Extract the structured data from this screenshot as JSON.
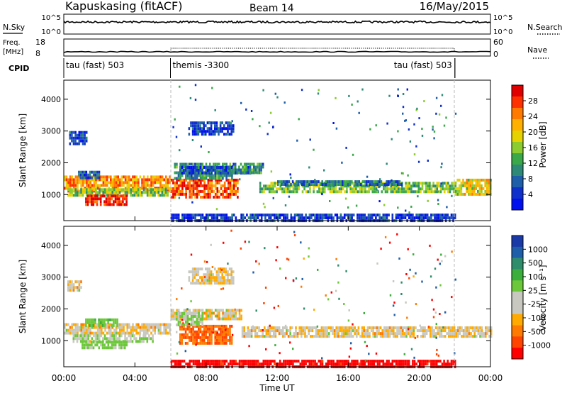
{
  "header": {
    "station": "Kapuskasing (fitACF)",
    "beam": "Beam 14",
    "date": "16/May/2015"
  },
  "top_panels": {
    "nsky_label": "N.Sky",
    "nsky_ticks": [
      "10^5",
      "10^0"
    ],
    "nsky_right_ticks": [
      "10^5",
      "10^0"
    ],
    "nsearch_label": "N.Search",
    "freq_label": "Freq.",
    "freq_unit": "[MHz]",
    "freq_ticks": [
      "18",
      "8"
    ],
    "nave_ticks": [
      "60",
      "0"
    ],
    "nave_label": "Nave",
    "cpid_label": "CPID",
    "cpid_segments": [
      {
        "label": "tau (fast) 503",
        "start_h": 0,
        "end_h": 6
      },
      {
        "label": "themis -3300",
        "start_h": 6,
        "end_h": 22
      },
      {
        "label": "tau (fast) 503",
        "start_h": 22,
        "end_h": 24
      }
    ]
  },
  "colorbars": {
    "power": {
      "title": "Power [dB]",
      "labels": [
        "28",
        "24",
        "20",
        "16",
        "12",
        "8",
        "4"
      ],
      "colors": [
        "#e00000",
        "#ff3000",
        "#ff7a00",
        "#ffb000",
        "#e6d200",
        "#8ccc30",
        "#3aa848",
        "#2e8a76",
        "#1f5ea8",
        "#1030cc",
        "#0010ee"
      ]
    },
    "velocity": {
      "title": "Velocity [m s⁻¹]",
      "labels": [
        "1000",
        "500",
        "100",
        "25",
        "-25",
        "-100",
        "-500",
        "-1000"
      ],
      "colors": [
        "#1a3aa8",
        "#1f5ea8",
        "#2f8d6c",
        "#3cae3c",
        "#6cc83a",
        "#c8c8c0",
        "#c8c8c0",
        "#ffaa00",
        "#ff7a00",
        "#ff4400",
        "#ff0000"
      ]
    }
  },
  "x_axis": {
    "ticks": [
      "00:00",
      "04:00",
      "08:00",
      "12:00",
      "16:00",
      "20:00",
      "00:00"
    ],
    "label": "Time UT"
  },
  "chart_data": [
    {
      "type": "heatmap",
      "name": "power",
      "ylabel": "Slant Range [km]",
      "y_ticks": [
        "1000",
        "2000",
        "3000",
        "4000"
      ],
      "xlim": [
        0,
        24
      ],
      "ylim": [
        180,
        4600
      ],
      "value_range_db": [
        0,
        30
      ],
      "regions": [
        {
          "t": [
            0.0,
            6.0
          ],
          "r": [
            1100,
            1600
          ],
          "v": 22
        },
        {
          "t": [
            0.2,
            5.8
          ],
          "r": [
            1000,
            1200
          ],
          "v": 14
        },
        {
          "t": [
            1.2,
            3.5
          ],
          "r": [
            700,
            1000
          ],
          "v": 28
        },
        {
          "t": [
            0.8,
            2.0
          ],
          "r": [
            1500,
            1750
          ],
          "v": 6
        },
        {
          "t": [
            0.3,
            1.3
          ],
          "r": [
            2600,
            3000
          ],
          "v": 4
        },
        {
          "t": [
            6.0,
            9.8
          ],
          "r": [
            900,
            1500
          ],
          "v": 25
        },
        {
          "t": [
            6.2,
            9.5
          ],
          "r": [
            1500,
            2000
          ],
          "v": 10
        },
        {
          "t": [
            6.5,
            10.5
          ],
          "r": [
            1700,
            1900
          ],
          "v": 6
        },
        {
          "t": [
            7.0,
            9.5
          ],
          "r": [
            2900,
            3300
          ],
          "v": 5
        },
        {
          "t": [
            9.5,
            11.2
          ],
          "r": [
            1700,
            2000
          ],
          "v": 10
        },
        {
          "t": [
            11.0,
            22.0
          ],
          "r": [
            1100,
            1400
          ],
          "v": 14
        },
        {
          "t": [
            12.0,
            19.0
          ],
          "r": [
            1300,
            1450
          ],
          "v": 8
        },
        {
          "t": [
            22.0,
            24.0
          ],
          "r": [
            1000,
            1500
          ],
          "v": 18
        },
        {
          "t": [
            6.0,
            22.0
          ],
          "r": [
            200,
            400
          ],
          "v": 4
        }
      ]
    },
    {
      "type": "heatmap",
      "name": "velocity",
      "ylabel": "Slant Range [km]",
      "y_ticks": [
        "1000",
        "2000",
        "3000",
        "4000"
      ],
      "xlim": [
        0,
        24
      ],
      "ylim": [
        180,
        4600
      ],
      "value_range_ms": [
        -1000,
        1000
      ],
      "regions": [
        {
          "t": [
            0.0,
            6.0
          ],
          "r": [
            1250,
            1550
          ],
          "v": 0
        },
        {
          "t": [
            0.5,
            5.0
          ],
          "r": [
            950,
            1200
          ],
          "v": 80
        },
        {
          "t": [
            1.0,
            3.5
          ],
          "r": [
            800,
            1000
          ],
          "v": 180
        },
        {
          "t": [
            1.2,
            3.0
          ],
          "r": [
            1500,
            1700
          ],
          "v": 220
        },
        {
          "t": [
            0.2,
            1.0
          ],
          "r": [
            2600,
            2900
          ],
          "v": 0
        },
        {
          "t": [
            6.0,
            10.0
          ],
          "r": [
            1700,
            2000
          ],
          "v": 0
        },
        {
          "t": [
            6.5,
            9.5
          ],
          "r": [
            900,
            1500
          ],
          "v": -300
        },
        {
          "t": [
            6.3,
            7.8
          ],
          "r": [
            1500,
            1900
          ],
          "v": 120
        },
        {
          "t": [
            7.0,
            9.5
          ],
          "r": [
            2800,
            3300
          ],
          "v": 0
        },
        {
          "t": [
            10.0,
            24.0
          ],
          "r": [
            1100,
            1450
          ],
          "v": 0
        },
        {
          "t": [
            6.0,
            22.0
          ],
          "r": [
            200,
            400
          ],
          "v": -600
        }
      ]
    }
  ]
}
